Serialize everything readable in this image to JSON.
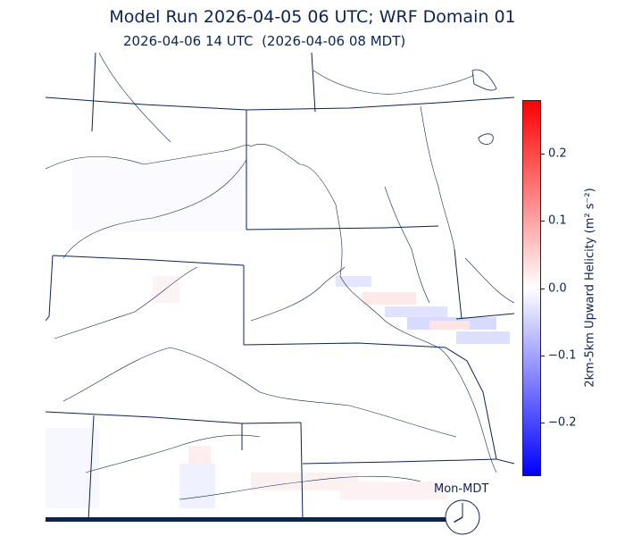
{
  "title": "Model Run 2026-04-05 06 UTC; WRF Domain 01",
  "subtitle": "2026-04-06 14 UTC  (2026-04-06 08 MDT)",
  "clock": {
    "label": "Mon-MDT",
    "hour": 8,
    "minute": 0
  },
  "progress": {
    "fraction": 1.0
  },
  "colorbar": {
    "label": "2km-5km Upward Helicity (m² s⁻²)",
    "min": -0.28,
    "max": 0.28,
    "ticks": [
      "0.2",
      "0.1",
      "0.0",
      "−0.1",
      "−0.2"
    ],
    "tick_values": [
      0.2,
      0.1,
      0.0,
      -0.1,
      -0.2
    ],
    "colors": {
      "high": "#ff0000",
      "mid": "#ffffff",
      "low": "#0000ff"
    }
  },
  "colors": {
    "text": "#0b2452",
    "boundaries": "#0b2452"
  }
}
